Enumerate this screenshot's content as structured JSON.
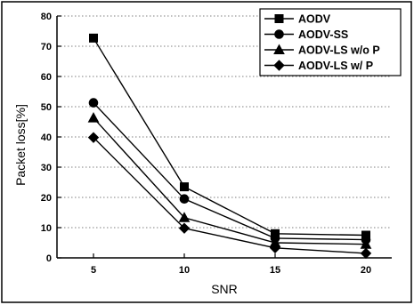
{
  "chart_data": {
    "type": "line",
    "title": "",
    "xlabel": "SNR",
    "ylabel": "Packet loss[%]",
    "x": [
      5,
      10,
      15,
      20
    ],
    "xticks": [
      "5",
      "10",
      "15",
      "20"
    ],
    "yticks": [
      "0",
      "10",
      "20",
      "30",
      "40",
      "50",
      "60",
      "70",
      "80"
    ],
    "ylim": [
      0,
      80
    ],
    "grid": true,
    "legend_position": "top-right",
    "series": [
      {
        "name": "AODV",
        "marker": "square",
        "values": [
          72.7,
          23.5,
          8.0,
          7.5
        ]
      },
      {
        "name": "AODV-SS",
        "marker": "circle",
        "values": [
          51.3,
          19.5,
          6.5,
          6.0
        ]
      },
      {
        "name": "AODV-LS w/o P",
        "marker": "triangle",
        "values": [
          46.3,
          13.3,
          5.0,
          4.5
        ]
      },
      {
        "name": "AODV-LS w/  P",
        "marker": "diamond",
        "values": [
          39.8,
          9.8,
          3.3,
          1.5
        ]
      }
    ]
  }
}
